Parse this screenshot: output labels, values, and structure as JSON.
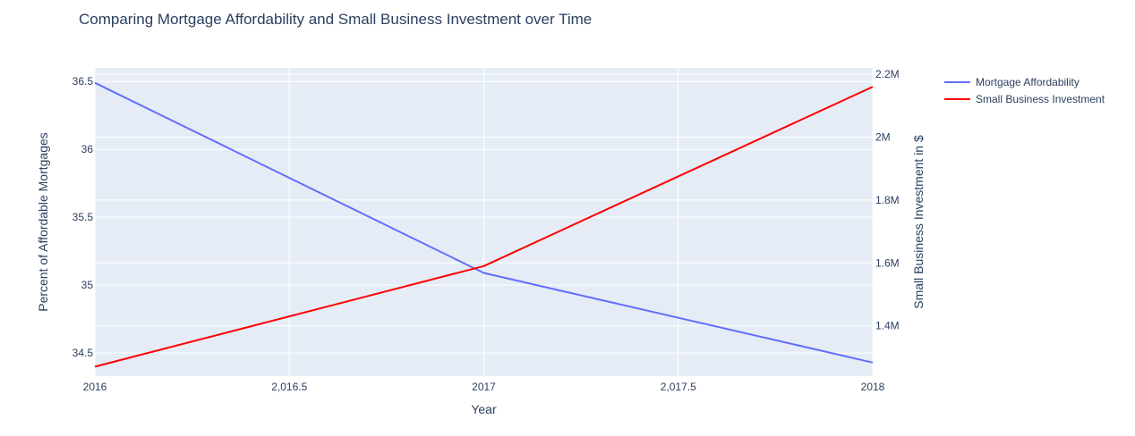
{
  "chart_data": {
    "type": "line",
    "title": "Comparing Mortgage Affordability and Small Business Investment over Time",
    "xlabel": "Year",
    "ylabel_left": "Percent of Affordable Mortgages",
    "ylabel_right": "Small Business Investment in $",
    "xlim": [
      2016,
      2018
    ],
    "ylim_left": [
      34.33,
      36.6
    ],
    "ylim_right": [
      1240000,
      2220000
    ],
    "x_ticks": [
      2016,
      2016.5,
      2017,
      2017.5,
      2018
    ],
    "x_tick_labels": [
      "2016",
      "2,016.5",
      "2017",
      "2,017.5",
      "2018"
    ],
    "y_left_ticks": [
      34.5,
      35,
      35.5,
      36,
      36.5
    ],
    "y_left_tick_labels": [
      "34.5",
      "35",
      "35.5",
      "36",
      "36.5"
    ],
    "y_right_ticks": [
      1400000,
      1600000,
      1800000,
      2000000,
      2200000
    ],
    "y_right_tick_labels": [
      "1.4M",
      "1.6M",
      "1.8M",
      "2M",
      "2.2M"
    ],
    "grid": true,
    "legend_position": "top-right",
    "series": [
      {
        "name": "Mortgage Affordability",
        "axis": "left",
        "color": "#636efa",
        "x": [
          2016,
          2017,
          2018
        ],
        "y": [
          36.49,
          35.09,
          34.43
        ]
      },
      {
        "name": "Small Business Investment",
        "axis": "right",
        "color": "#ff0000",
        "x": [
          2016,
          2017,
          2018
        ],
        "y": [
          1270000,
          1590000,
          2160000
        ]
      }
    ]
  }
}
